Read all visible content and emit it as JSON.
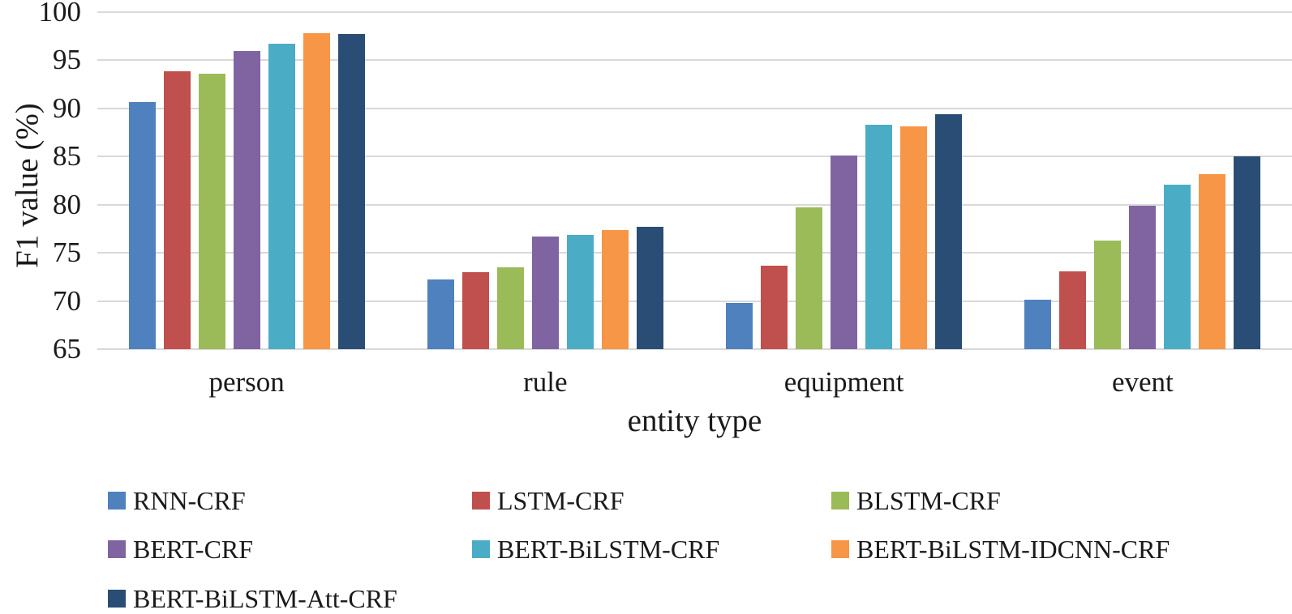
{
  "figure": {
    "background_color": "#ffffff",
    "text_color": "#1a1a1a",
    "gridline_color": "#d9d9d9"
  },
  "chart_data": {
    "type": "bar",
    "title": "",
    "xlabel": "entity type",
    "ylabel": "F1 value (%)",
    "ylim": [
      65,
      100
    ],
    "yticks": [
      65,
      70,
      75,
      80,
      85,
      90,
      95,
      100
    ],
    "grid": "horizontal",
    "legend_position": "bottom, 3 columns",
    "categories": [
      "person",
      "rule",
      "equipment",
      "event"
    ],
    "series": [
      {
        "name": "RNN-CRF",
        "color": "#4E81BD",
        "values": [
          90.7,
          72.2,
          69.8,
          70.1
        ]
      },
      {
        "name": "LSTM-CRF",
        "color": "#C0504D",
        "values": [
          93.9,
          73.0,
          73.7,
          73.1
        ]
      },
      {
        "name": "BLSTM-CRF",
        "color": "#9BBB59",
        "values": [
          93.6,
          73.5,
          79.7,
          76.3
        ]
      },
      {
        "name": "BERT-CRF",
        "color": "#8064A2",
        "values": [
          96.0,
          76.7,
          85.1,
          79.9
        ]
      },
      {
        "name": "BERT-BiLSTM-CRF",
        "color": "#4BACC6",
        "values": [
          96.7,
          76.9,
          88.3,
          82.1
        ]
      },
      {
        "name": "BERT-BiLSTM-IDCNN-CRF",
        "color": "#F79646",
        "values": [
          97.8,
          77.4,
          88.1,
          83.2
        ]
      },
      {
        "name": "BERT-BiLSTM-Att-CRF",
        "color": "#2A4D75",
        "values": [
          97.7,
          77.7,
          89.4,
          85.0
        ]
      }
    ]
  }
}
